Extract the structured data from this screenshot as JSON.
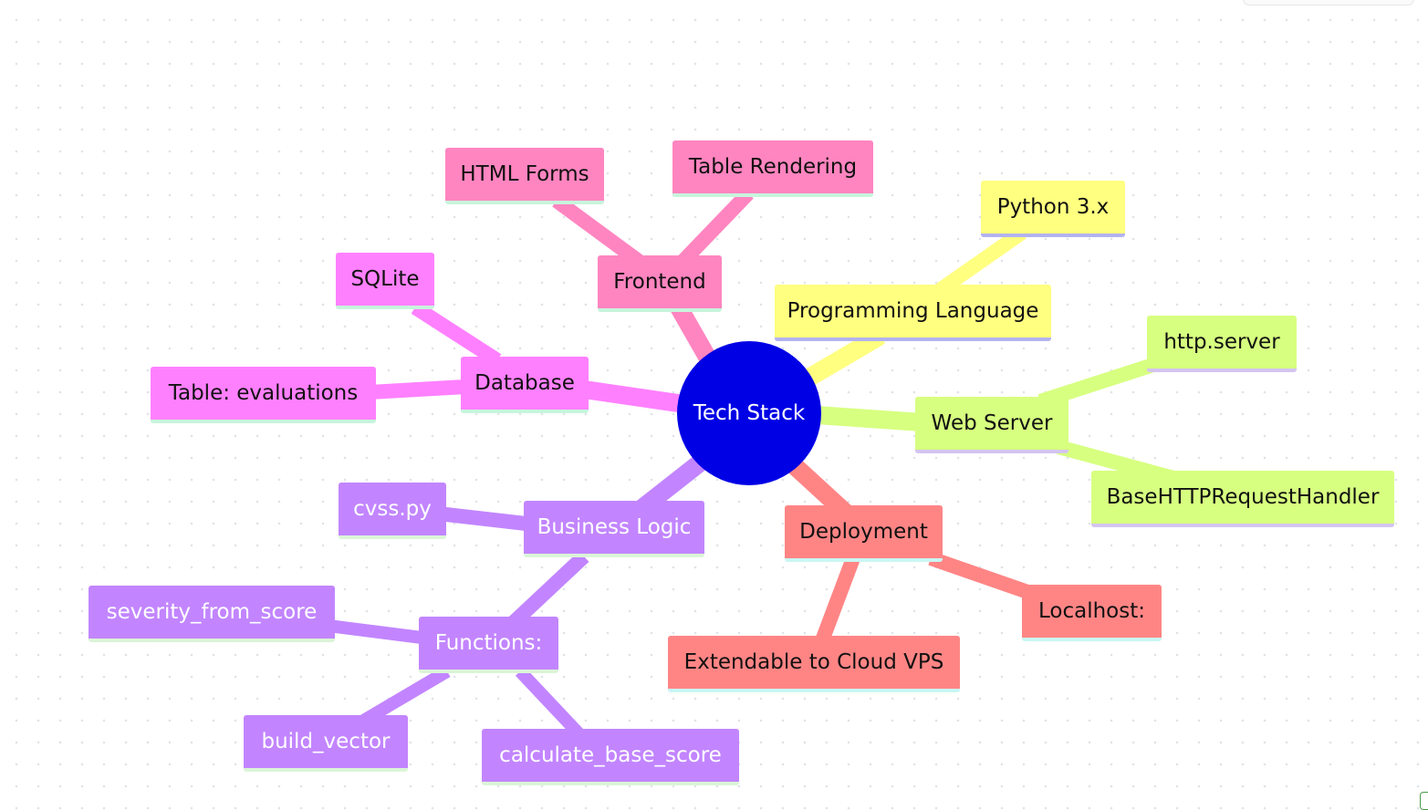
{
  "mindmap": {
    "root": "Tech Stack",
    "branches": [
      {
        "label": "Frontend",
        "color": "#ff85c0",
        "children": [
          "HTML Forms",
          "Table Rendering"
        ]
      },
      {
        "label": "Programming Language",
        "color": "#ffff80",
        "children": [
          "Python 3.x"
        ]
      },
      {
        "label": "Web Server",
        "color": "#d7ff80",
        "children": [
          "http.server",
          "BaseHTTPRequestHandler"
        ]
      },
      {
        "label": "Deployment",
        "color": "#ff8585",
        "children": [
          "Localhost:",
          "Extendable to Cloud VPS"
        ]
      },
      {
        "label": "Business Logic",
        "color": "#c285ff",
        "children": [
          "cvss.py",
          "Functions:"
        ],
        "grandchildren": [
          "severity_from_score",
          "build_vector",
          "calculate_base_score"
        ]
      },
      {
        "label": "Database",
        "color": "#ff80ff",
        "children": [
          "SQLite",
          "Table: evaluations"
        ]
      }
    ],
    "root_color": "#0000e5"
  }
}
